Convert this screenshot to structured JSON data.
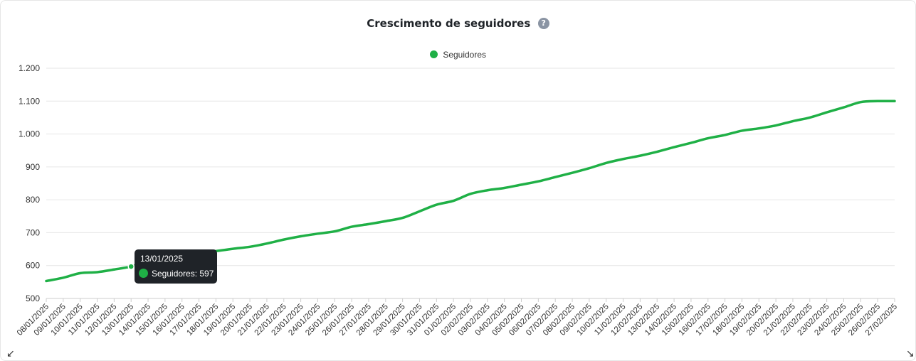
{
  "header": {
    "title": "Crescimento de seguidores",
    "help_icon": "?"
  },
  "colors": {
    "series": "#1fb046",
    "grid": "#e6e6e6",
    "axis": "#cccccc"
  },
  "tooltip": {
    "date": "13/01/2025",
    "label": "Seguidores: 597"
  },
  "corner_icons": {
    "left": "↙",
    "right": "↘"
  },
  "chart_data": {
    "type": "line",
    "legend_position": "top-center",
    "grid": true,
    "ylim": [
      500,
      1200
    ],
    "yticks": [
      "500",
      "600",
      "700",
      "800",
      "900",
      "1.000",
      "1.100",
      "1.200"
    ],
    "ytick_values": [
      500,
      600,
      700,
      800,
      900,
      1000,
      1100,
      1200
    ],
    "categories": [
      "08/01/2025",
      "09/01/2025",
      "10/01/2025",
      "11/01/2025",
      "12/01/2025",
      "13/01/2025",
      "14/01/2025",
      "15/01/2025",
      "16/01/2025",
      "17/01/2025",
      "18/01/2025",
      "19/01/2025",
      "20/01/2025",
      "21/01/2025",
      "22/01/2025",
      "23/01/2025",
      "24/01/2025",
      "25/01/2025",
      "26/01/2025",
      "27/01/2025",
      "28/01/2025",
      "29/01/2025",
      "30/01/2025",
      "31/01/2025",
      "01/02/2025",
      "02/02/2025",
      "03/02/2025",
      "04/02/2025",
      "05/02/2025",
      "06/02/2025",
      "07/02/2025",
      "08/02/2025",
      "09/02/2025",
      "10/02/2025",
      "11/02/2025",
      "12/02/2025",
      "13/02/2025",
      "14/02/2025",
      "15/02/2025",
      "16/02/2025",
      "17/02/2025",
      "18/02/2025",
      "19/02/2025",
      "20/02/2025",
      "21/02/2025",
      "22/02/2025",
      "23/02/2025",
      "24/02/2025",
      "25/02/2025",
      "26/02/2025",
      "27/02/2025"
    ],
    "series": [
      {
        "name": "Seguidores",
        "values": [
          553,
          563,
          577,
          580,
          588,
          597,
          611,
          620,
          630,
          637,
          644,
          651,
          657,
          667,
          679,
          689,
          697,
          704,
          718,
          726,
          735,
          745,
          765,
          785,
          797,
          818,
          829,
          836,
          846,
          856,
          869,
          882,
          896,
          912,
          924,
          934,
          946,
          960,
          973,
          987,
          997,
          1010,
          1017,
          1026,
          1039,
          1050,
          1066,
          1081,
          1097,
          1100,
          1100
        ]
      }
    ]
  }
}
